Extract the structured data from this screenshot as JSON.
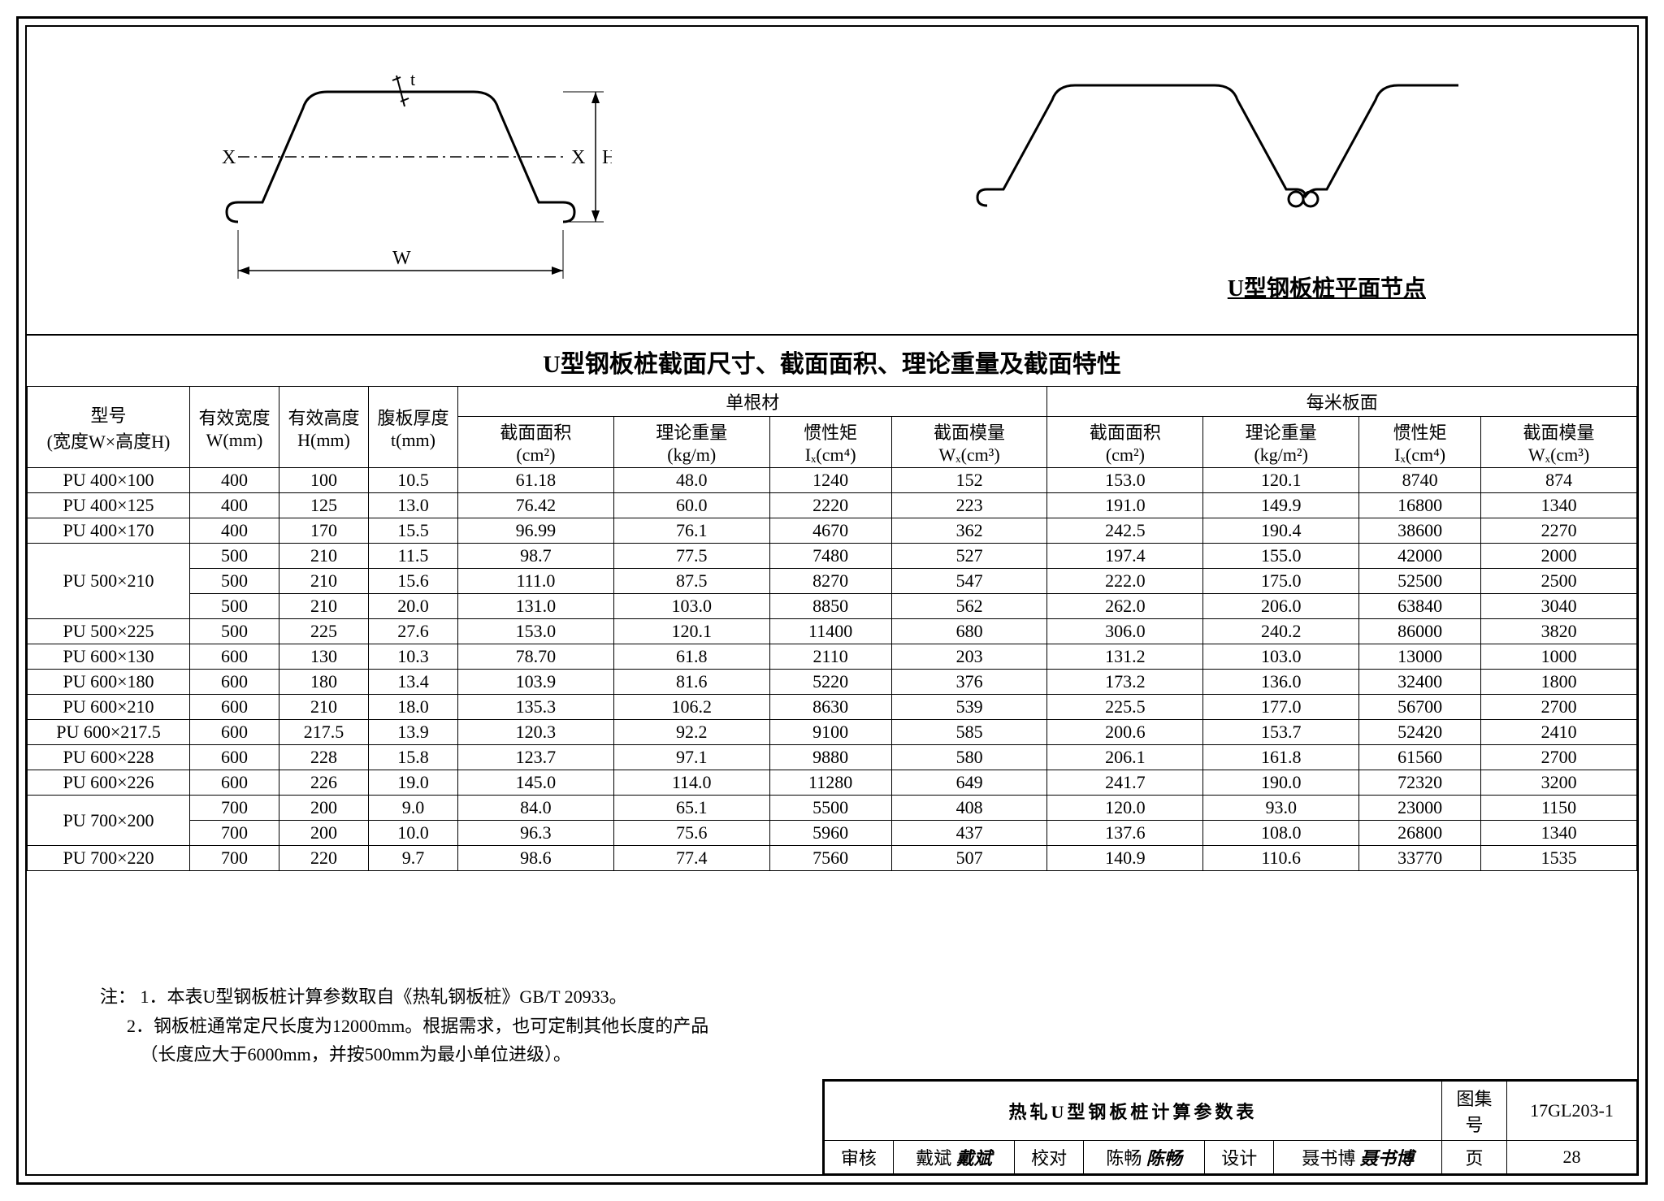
{
  "diagram": {
    "left_labels": {
      "x": "X",
      "h": "H",
      "w": "W",
      "t": "t"
    },
    "right_caption": "U型钢板桩平面节点",
    "stroke": "#000000",
    "stroke_width": 2.5,
    "dash": "6,4"
  },
  "table": {
    "title": "U型钢板桩截面尺寸、截面面积、理论重量及截面特性",
    "head": {
      "model": "型号",
      "model_sub": "(宽度W×高度H)",
      "w": "有效宽度",
      "w_unit": "W(mm)",
      "h": "有效高度",
      "h_unit": "H(mm)",
      "t": "腹板厚度",
      "t_unit": "t(mm)",
      "single": "单根材",
      "perm": "每米板面",
      "area": "截面面积",
      "area_unit": "(cm²)",
      "mass": "理论重量",
      "mass_unit1": "(kg/m)",
      "mass_unit2": "(kg/m²)",
      "ix": "惯性矩",
      "ix_unit": "Iₓ(cm⁴)",
      "wx": "截面模量",
      "wx_unit": "Wₓ(cm³)"
    },
    "rows": [
      {
        "model": "PU 400×100",
        "w": "400",
        "h": "100",
        "t": "10.5",
        "a1": "61.18",
        "m1": "48.0",
        "i1": "1240",
        "x1": "152",
        "a2": "153.0",
        "m2": "120.1",
        "i2": "8740",
        "x2": "874",
        "span": 1
      },
      {
        "model": "PU 400×125",
        "w": "400",
        "h": "125",
        "t": "13.0",
        "a1": "76.42",
        "m1": "60.0",
        "i1": "2220",
        "x1": "223",
        "a2": "191.0",
        "m2": "149.9",
        "i2": "16800",
        "x2": "1340",
        "span": 1
      },
      {
        "model": "PU 400×170",
        "w": "400",
        "h": "170",
        "t": "15.5",
        "a1": "96.99",
        "m1": "76.1",
        "i1": "4670",
        "x1": "362",
        "a2": "242.5",
        "m2": "190.4",
        "i2": "38600",
        "x2": "2270",
        "span": 1
      },
      {
        "model": "PU 500×210",
        "w": "500",
        "h": "210",
        "t": "11.5",
        "a1": "98.7",
        "m1": "77.5",
        "i1": "7480",
        "x1": "527",
        "a2": "197.4",
        "m2": "155.0",
        "i2": "42000",
        "x2": "2000",
        "span": 3
      },
      {
        "model": "",
        "w": "500",
        "h": "210",
        "t": "15.6",
        "a1": "111.0",
        "m1": "87.5",
        "i1": "8270",
        "x1": "547",
        "a2": "222.0",
        "m2": "175.0",
        "i2": "52500",
        "x2": "2500",
        "span": 0
      },
      {
        "model": "",
        "w": "500",
        "h": "210",
        "t": "20.0",
        "a1": "131.0",
        "m1": "103.0",
        "i1": "8850",
        "x1": "562",
        "a2": "262.0",
        "m2": "206.0",
        "i2": "63840",
        "x2": "3040",
        "span": 0
      },
      {
        "model": "PU 500×225",
        "w": "500",
        "h": "225",
        "t": "27.6",
        "a1": "153.0",
        "m1": "120.1",
        "i1": "11400",
        "x1": "680",
        "a2": "306.0",
        "m2": "240.2",
        "i2": "86000",
        "x2": "3820",
        "span": 1
      },
      {
        "model": "PU 600×130",
        "w": "600",
        "h": "130",
        "t": "10.3",
        "a1": "78.70",
        "m1": "61.8",
        "i1": "2110",
        "x1": "203",
        "a2": "131.2",
        "m2": "103.0",
        "i2": "13000",
        "x2": "1000",
        "span": 1
      },
      {
        "model": "PU 600×180",
        "w": "600",
        "h": "180",
        "t": "13.4",
        "a1": "103.9",
        "m1": "81.6",
        "i1": "5220",
        "x1": "376",
        "a2": "173.2",
        "m2": "136.0",
        "i2": "32400",
        "x2": "1800",
        "span": 1
      },
      {
        "model": "PU 600×210",
        "w": "600",
        "h": "210",
        "t": "18.0",
        "a1": "135.3",
        "m1": "106.2",
        "i1": "8630",
        "x1": "539",
        "a2": "225.5",
        "m2": "177.0",
        "i2": "56700",
        "x2": "2700",
        "span": 1
      },
      {
        "model": "PU 600×217.5",
        "w": "600",
        "h": "217.5",
        "t": "13.9",
        "a1": "120.3",
        "m1": "92.2",
        "i1": "9100",
        "x1": "585",
        "a2": "200.6",
        "m2": "153.7",
        "i2": "52420",
        "x2": "2410",
        "span": 1
      },
      {
        "model": "PU 600×228",
        "w": "600",
        "h": "228",
        "t": "15.8",
        "a1": "123.7",
        "m1": "97.1",
        "i1": "9880",
        "x1": "580",
        "a2": "206.1",
        "m2": "161.8",
        "i2": "61560",
        "x2": "2700",
        "span": 1
      },
      {
        "model": "PU 600×226",
        "w": "600",
        "h": "226",
        "t": "19.0",
        "a1": "145.0",
        "m1": "114.0",
        "i1": "11280",
        "x1": "649",
        "a2": "241.7",
        "m2": "190.0",
        "i2": "72320",
        "x2": "3200",
        "span": 1
      },
      {
        "model": "PU 700×200",
        "w": "700",
        "h": "200",
        "t": "9.0",
        "a1": "84.0",
        "m1": "65.1",
        "i1": "5500",
        "x1": "408",
        "a2": "120.0",
        "m2": "93.0",
        "i2": "23000",
        "x2": "1150",
        "span": 2
      },
      {
        "model": "",
        "w": "700",
        "h": "200",
        "t": "10.0",
        "a1": "96.3",
        "m1": "75.6",
        "i1": "5960",
        "x1": "437",
        "a2": "137.6",
        "m2": "108.0",
        "i2": "26800",
        "x2": "1340",
        "span": 0
      },
      {
        "model": "PU 700×220",
        "w": "700",
        "h": "220",
        "t": "9.7",
        "a1": "98.6",
        "m1": "77.4",
        "i1": "7560",
        "x1": "507",
        "a2": "140.9",
        "m2": "110.6",
        "i2": "33770",
        "x2": "1535",
        "span": 1
      }
    ]
  },
  "notes": {
    "prefix": "注：",
    "n1": "1．本表U型钢板桩计算参数取自《热轧钢板桩》GB/T 20933。",
    "n2": "2．钢板桩通常定尺长度为12000mm。根据需求，也可定制其他长度的产品",
    "n2b": "（长度应大于6000mm，并按500mm为最小单位进级）。"
  },
  "titleblock": {
    "title": "热轧U型钢板桩计算参数表",
    "atlas_label": "图集号",
    "atlas_no": "17GL203-1",
    "review_label": "审核",
    "review_name": "戴斌",
    "review_sig": "戴斌",
    "check_label": "校对",
    "check_name": "陈畅",
    "check_sig": "陈畅",
    "design_label": "设计",
    "design_name": "聂书博",
    "design_sig": "聂书博",
    "page_label": "页",
    "page_no": "28"
  }
}
